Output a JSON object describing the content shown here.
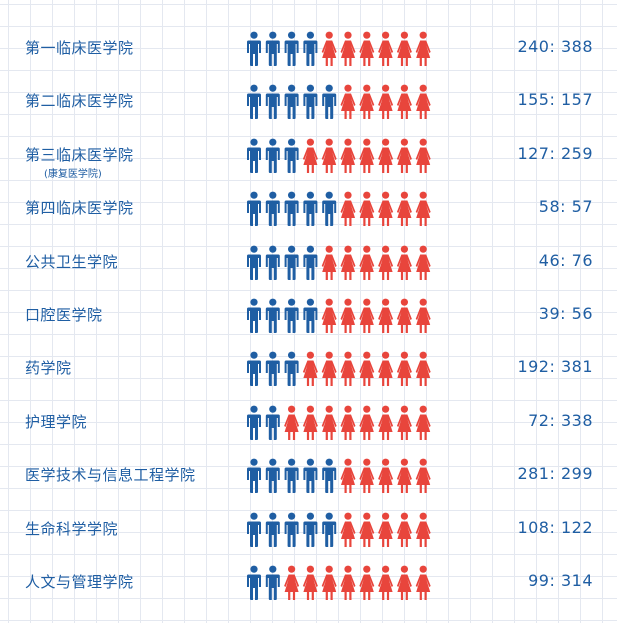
{
  "chart_data": {
    "type": "pictograph",
    "colors": {
      "male": "#1f5ea3",
      "female": "#e8453c",
      "text": "#1f5ea3"
    },
    "rows": [
      {
        "name": "第一临床医学院",
        "sub": "",
        "male": 240,
        "female": 388,
        "ratio_text": "240: 388",
        "male_icons": 4
      },
      {
        "name": "第二临床医学院",
        "sub": "",
        "male": 155,
        "female": 157,
        "ratio_text": "155: 157",
        "male_icons": 5
      },
      {
        "name": "第三临床医学院",
        "sub": "(康复医学院)",
        "male": 127,
        "female": 259,
        "ratio_text": "127: 259",
        "male_icons": 3
      },
      {
        "name": "第四临床医学院",
        "sub": "",
        "male": 58,
        "female": 57,
        "ratio_text": "58: 57",
        "male_icons": 5
      },
      {
        "name": "公共卫生学院",
        "sub": "",
        "male": 46,
        "female": 76,
        "ratio_text": "46: 76",
        "male_icons": 4
      },
      {
        "name": "口腔医学院",
        "sub": "",
        "male": 39,
        "female": 56,
        "ratio_text": "39: 56",
        "male_icons": 4
      },
      {
        "name": "药学院",
        "sub": "",
        "male": 192,
        "female": 381,
        "ratio_text": "192: 381",
        "male_icons": 3
      },
      {
        "name": "护理学院",
        "sub": "",
        "male": 72,
        "female": 338,
        "ratio_text": "72: 338",
        "male_icons": 2
      },
      {
        "name": "医学技术与信息工程学院",
        "sub": "",
        "male": 281,
        "female": 299,
        "ratio_text": "281: 299",
        "male_icons": 5
      },
      {
        "name": "生命科学学院",
        "sub": "",
        "male": 108,
        "female": 122,
        "ratio_text": "108: 122",
        "male_icons": 5
      },
      {
        "name": "人文与管理学院",
        "sub": "",
        "male": 99,
        "female": 314,
        "ratio_text": "99: 314",
        "male_icons": 2
      }
    ]
  }
}
